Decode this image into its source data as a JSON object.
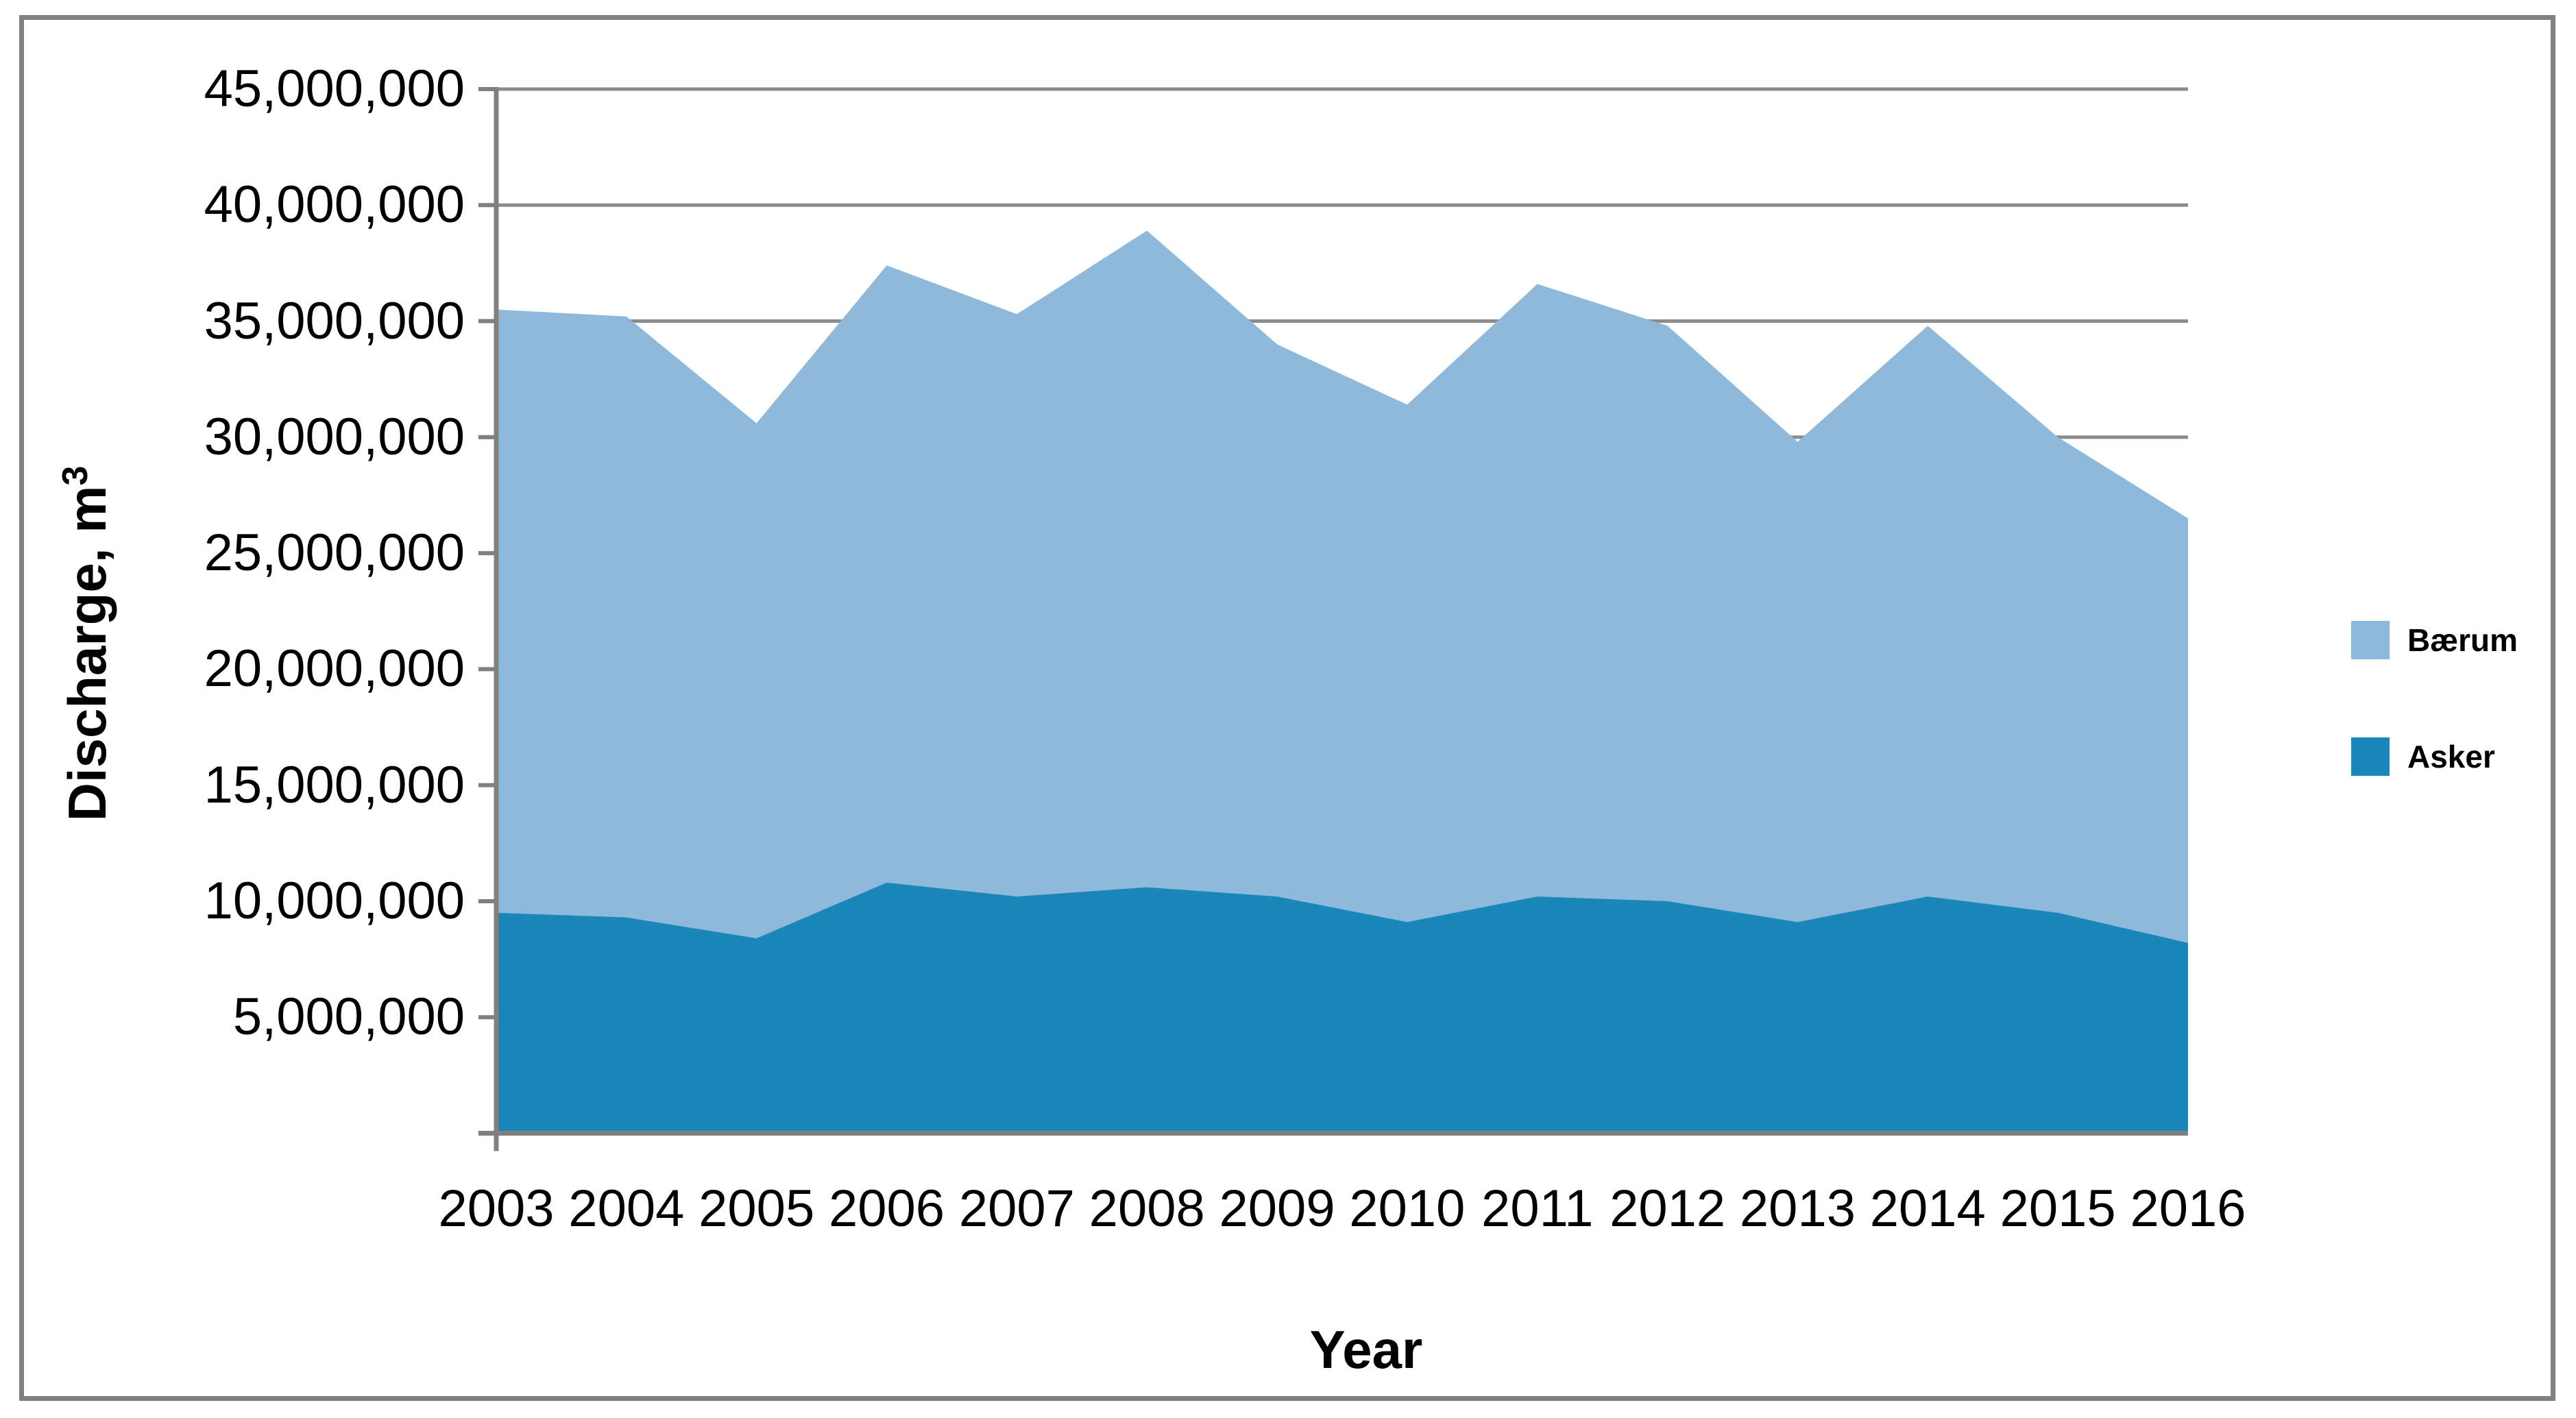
{
  "chart_data": {
    "type": "area",
    "stacked": true,
    "title": "",
    "xlabel": "Year",
    "ylabel_main": "Discharge, m",
    "ylabel_sup": "3",
    "ylim": [
      0,
      45000000
    ],
    "grid": "horizontal",
    "legend_position": "right",
    "categories": [
      "2003",
      "2004",
      "2005",
      "2006",
      "2007",
      "2008",
      "2009",
      "2010",
      "2011",
      "2012",
      "2013",
      "2014",
      "2015",
      "2016"
    ],
    "series": [
      {
        "name": "Asker",
        "color": "#1A87BA",
        "values": [
          9500000,
          9300000,
          8400000,
          10800000,
          10200000,
          10600000,
          10200000,
          9100000,
          10200000,
          10000000,
          9100000,
          10200000,
          9500000,
          8200000
        ]
      },
      {
        "name": "Bærum",
        "color": "#8FB9DB",
        "values": [
          26000000,
          25900000,
          22200000,
          26600000,
          25100000,
          28300000,
          23800000,
          22300000,
          26400000,
          24800000,
          20700000,
          24600000,
          20500000,
          18300000
        ]
      }
    ],
    "stack_totals": [
      35500000,
      35200000,
      30600000,
      37400000,
      35300000,
      38900000,
      34000000,
      31400000,
      36600000,
      34800000,
      29800000,
      34800000,
      30000000,
      26500000
    ],
    "y_ticks": [
      {
        "v": 45000000,
        "label": "45,000,000"
      },
      {
        "v": 40000000,
        "label": "40,000,000"
      },
      {
        "v": 35000000,
        "label": "35,000,000"
      },
      {
        "v": 30000000,
        "label": "30,000,000"
      },
      {
        "v": 25000000,
        "label": "25,000,000"
      },
      {
        "v": 20000000,
        "label": "20,000,000"
      },
      {
        "v": 15000000,
        "label": "15,000,000"
      },
      {
        "v": 10000000,
        "label": "10,000,000"
      },
      {
        "v": 5000000,
        "label": "5,000,000"
      }
    ]
  },
  "legend": {
    "items": [
      {
        "label": "Bærum",
        "color": "#8FB9DB"
      },
      {
        "label": "Asker",
        "color": "#1A87BA"
      }
    ]
  },
  "colors": {
    "axis": "#808080",
    "gridline": "#8C8C8C",
    "border": "#808080",
    "text": "#000000"
  }
}
